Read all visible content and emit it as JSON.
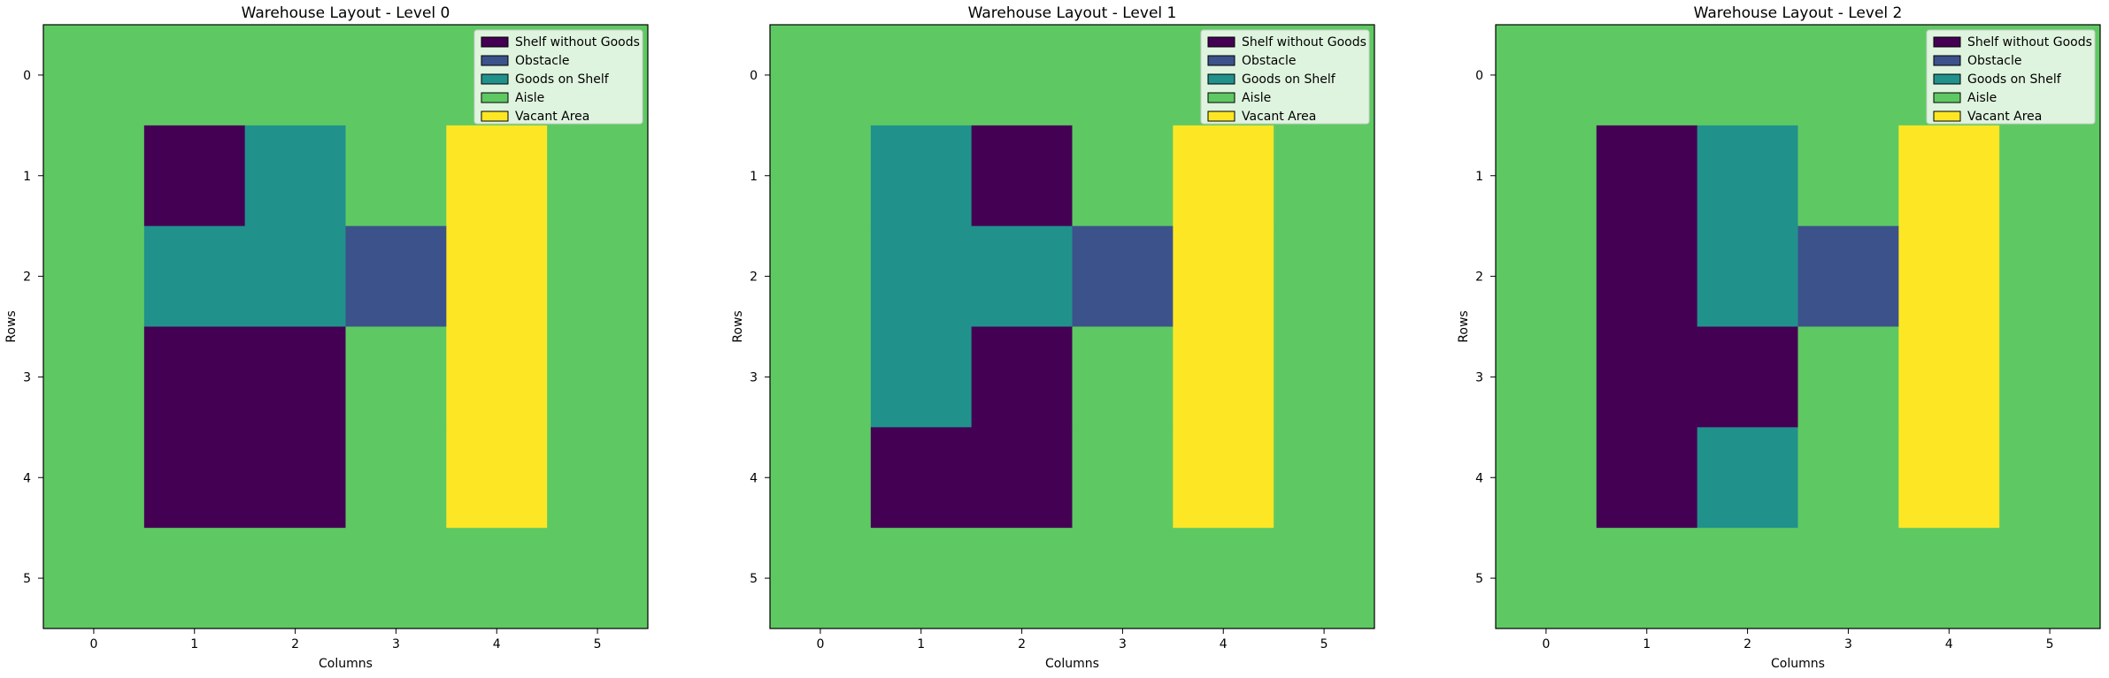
{
  "chart_data": [
    {
      "type": "heatmap",
      "title": "Warehouse Layout - Level 0",
      "xlabel": "Columns",
      "ylabel": "Rows",
      "x_ticks": [
        "0",
        "1",
        "2",
        "3",
        "4",
        "5"
      ],
      "y_ticks": [
        "0",
        "1",
        "2",
        "3",
        "4",
        "5"
      ],
      "grid": false,
      "legend_position": "top-right",
      "categories": [
        "Shelf without Goods",
        "Obstacle",
        "Goods on Shelf",
        "Aisle",
        "Vacant Area"
      ],
      "category_colors": [
        "#440154",
        "#3b528b",
        "#21918c",
        "#5ec962",
        "#fde725"
      ],
      "values": [
        [
          3,
          3,
          3,
          3,
          3,
          3
        ],
        [
          3,
          0,
          2,
          3,
          4,
          3
        ],
        [
          3,
          2,
          2,
          1,
          4,
          3
        ],
        [
          3,
          0,
          0,
          3,
          4,
          3
        ],
        [
          3,
          0,
          0,
          3,
          4,
          3
        ],
        [
          3,
          3,
          3,
          3,
          3,
          3
        ]
      ]
    },
    {
      "type": "heatmap",
      "title": "Warehouse Layout - Level 1",
      "xlabel": "Columns",
      "ylabel": "Rows",
      "x_ticks": [
        "0",
        "1",
        "2",
        "3",
        "4",
        "5"
      ],
      "y_ticks": [
        "0",
        "1",
        "2",
        "3",
        "4",
        "5"
      ],
      "grid": false,
      "legend_position": "top-right",
      "categories": [
        "Shelf without Goods",
        "Obstacle",
        "Goods on Shelf",
        "Aisle",
        "Vacant Area"
      ],
      "category_colors": [
        "#440154",
        "#3b528b",
        "#21918c",
        "#5ec962",
        "#fde725"
      ],
      "values": [
        [
          3,
          3,
          3,
          3,
          3,
          3
        ],
        [
          3,
          2,
          0,
          3,
          4,
          3
        ],
        [
          3,
          2,
          2,
          1,
          4,
          3
        ],
        [
          3,
          2,
          0,
          3,
          4,
          3
        ],
        [
          3,
          0,
          0,
          3,
          4,
          3
        ],
        [
          3,
          3,
          3,
          3,
          3,
          3
        ]
      ]
    },
    {
      "type": "heatmap",
      "title": "Warehouse Layout - Level 2",
      "xlabel": "Columns",
      "ylabel": "Rows",
      "x_ticks": [
        "0",
        "1",
        "2",
        "3",
        "4",
        "5"
      ],
      "y_ticks": [
        "0",
        "1",
        "2",
        "3",
        "4",
        "5"
      ],
      "grid": false,
      "legend_position": "top-right",
      "categories": [
        "Shelf without Goods",
        "Obstacle",
        "Goods on Shelf",
        "Aisle",
        "Vacant Area"
      ],
      "category_colors": [
        "#440154",
        "#3b528b",
        "#21918c",
        "#5ec962",
        "#fde725"
      ],
      "values": [
        [
          3,
          3,
          3,
          3,
          3,
          3
        ],
        [
          3,
          0,
          2,
          3,
          4,
          3
        ],
        [
          3,
          0,
          2,
          1,
          4,
          3
        ],
        [
          3,
          0,
          0,
          3,
          4,
          3
        ],
        [
          3,
          0,
          2,
          3,
          4,
          3
        ],
        [
          3,
          3,
          3,
          3,
          3,
          3
        ]
      ]
    }
  ]
}
